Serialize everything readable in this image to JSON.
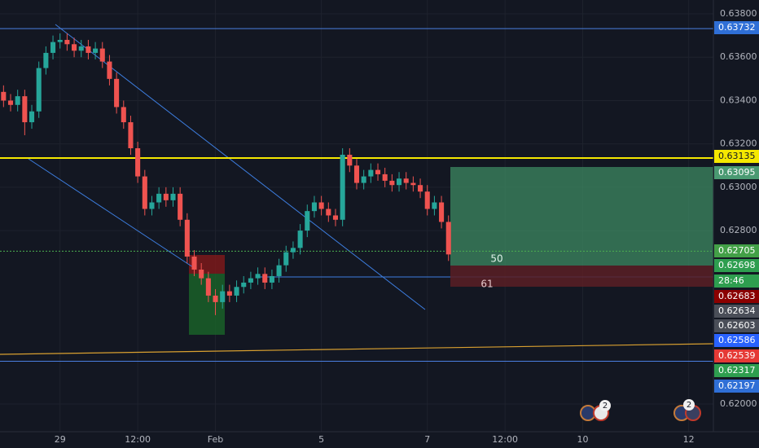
{
  "chart_data": {
    "type": "candlestick",
    "open": [
      0.6344,
      0.634,
      0.6338,
      0.6342,
      0.633,
      0.6335,
      0.6355,
      0.6362,
      0.6367,
      0.6368,
      0.6366,
      0.6363,
      0.6365,
      0.6362,
      0.6364,
      0.6358,
      0.635,
      0.6337,
      0.633,
      0.6318,
      0.6305,
      0.629,
      0.6293,
      0.6297,
      0.6294,
      0.6297,
      0.6285,
      0.6268,
      0.6262,
      0.6258,
      0.625,
      0.6247,
      0.6252,
      0.625,
      0.6254,
      0.6256,
      0.6258,
      0.626,
      0.6256,
      0.6259,
      0.6264,
      0.627,
      0.6272,
      0.628,
      0.6289,
      0.6293,
      0.629,
      0.6287,
      0.6285,
      0.6315,
      0.631,
      0.6302,
      0.6305,
      0.6308,
      0.6306,
      0.6303,
      0.6301,
      0.6304,
      0.6302,
      0.6301,
      0.6298,
      0.629,
      0.6293,
      0.6284
    ],
    "high": [
      0.6347,
      0.6343,
      0.6345,
      0.6345,
      0.6338,
      0.6358,
      0.6365,
      0.637,
      0.6371,
      0.6371,
      0.6369,
      0.6368,
      0.6368,
      0.6367,
      0.6367,
      0.6361,
      0.6353,
      0.634,
      0.6333,
      0.6321,
      0.6308,
      0.6296,
      0.63,
      0.63,
      0.63,
      0.63,
      0.6288,
      0.6271,
      0.6265,
      0.6261,
      0.6253,
      0.6255,
      0.6255,
      0.6257,
      0.6259,
      0.6261,
      0.6263,
      0.6263,
      0.6262,
      0.6267,
      0.6273,
      0.6275,
      0.6283,
      0.6292,
      0.6296,
      0.6296,
      0.6293,
      0.629,
      0.6318,
      0.6318,
      0.6313,
      0.6308,
      0.6311,
      0.6311,
      0.6309,
      0.6306,
      0.6307,
      0.6307,
      0.6305,
      0.6304,
      0.6301,
      0.6296,
      0.6296,
      0.6287
    ],
    "low": [
      0.6337,
      0.6335,
      0.6335,
      0.6324,
      0.6327,
      0.6332,
      0.6352,
      0.6359,
      0.6364,
      0.6363,
      0.636,
      0.636,
      0.6359,
      0.6359,
      0.6355,
      0.6347,
      0.6334,
      0.6327,
      0.6315,
      0.6302,
      0.6287,
      0.6287,
      0.629,
      0.6291,
      0.6291,
      0.6282,
      0.6265,
      0.6259,
      0.6255,
      0.6247,
      0.6241,
      0.6244,
      0.6247,
      0.6247,
      0.6251,
      0.6253,
      0.6255,
      0.6253,
      0.6253,
      0.6256,
      0.6261,
      0.6267,
      0.6269,
      0.6277,
      0.6286,
      0.6287,
      0.6284,
      0.6282,
      0.6282,
      0.6307,
      0.6299,
      0.6299,
      0.6302,
      0.6303,
      0.63,
      0.6298,
      0.6298,
      0.6299,
      0.6298,
      0.6295,
      0.6287,
      0.6287,
      0.6281,
      0.6266
    ],
    "close": [
      0.634,
      0.6338,
      0.6342,
      0.633,
      0.6335,
      0.6355,
      0.6362,
      0.6367,
      0.6368,
      0.6366,
      0.6363,
      0.6365,
      0.6362,
      0.6364,
      0.6358,
      0.635,
      0.6337,
      0.633,
      0.6318,
      0.6305,
      0.629,
      0.6293,
      0.6297,
      0.6294,
      0.6297,
      0.6285,
      0.6268,
      0.6262,
      0.6258,
      0.625,
      0.6247,
      0.6252,
      0.625,
      0.6254,
      0.6256,
      0.6258,
      0.626,
      0.6256,
      0.6259,
      0.6264,
      0.627,
      0.6272,
      0.628,
      0.6289,
      0.6293,
      0.629,
      0.6287,
      0.6285,
      0.6315,
      0.631,
      0.6302,
      0.6305,
      0.6308,
      0.6306,
      0.6303,
      0.6301,
      0.6304,
      0.6302,
      0.6301,
      0.6298,
      0.629,
      0.6293,
      0.6284,
      0.6269
    ],
    "up_color": "#26a69a",
    "down_color": "#ef5350",
    "xlim": [
      -0.5,
      100.5
    ],
    "xticks": [
      {
        "value": 8,
        "label": "29"
      },
      {
        "value": 19,
        "label": "12:00"
      },
      {
        "value": 30,
        "label": "Feb"
      },
      {
        "value": 45,
        "label": "5"
      },
      {
        "value": 60,
        "label": "7"
      },
      {
        "value": 71,
        "label": "12:00"
      },
      {
        "value": 82,
        "label": "10"
      },
      {
        "value": 97,
        "label": "12"
      }
    ],
    "ylim": [
      0.61872,
      0.63864
    ],
    "yticks": [
      {
        "value": 0.638,
        "label": "0.63800"
      },
      {
        "value": 0.636,
        "label": "0.63600"
      },
      {
        "value": 0.634,
        "label": "0.63400"
      },
      {
        "value": 0.632,
        "label": "0.63200"
      },
      {
        "value": 0.63,
        "label": "0.63000"
      },
      {
        "value": 0.628,
        "label": "0.62800"
      },
      {
        "value": 0.62,
        "label": "0.62000"
      }
    ],
    "grid": true,
    "levels": [
      {
        "price": 0.63732,
        "color": "#4a7fe0"
      },
      {
        "price": 0.63135,
        "color": "#f5e800"
      },
      {
        "price": 0.62705,
        "color": "#4caf50"
      },
      {
        "price": 0.62197,
        "color": "#4a7fe0"
      }
    ],
    "price_tags": [
      {
        "text": 0.63732,
        "color": "#2f6fd6"
      },
      {
        "text": 0.63135,
        "color": "#f5e800"
      },
      {
        "text": 0.63095,
        "color": "#4a9a72"
      },
      {
        "text": 0.62705,
        "color": "#43a047"
      },
      {
        "text": 0.62698,
        "color": "#2e9e4f"
      },
      {
        "text": "28:46",
        "color": "#2e9e4f"
      },
      {
        "text": 0.62683,
        "color": "#8b0000"
      },
      {
        "text": 0.62634,
        "color": "#4a4e58"
      },
      {
        "text": 0.62603,
        "color": "#4a4e58"
      },
      {
        "text": 0.62586,
        "color": "#2962ff"
      },
      {
        "text": 0.62539,
        "color": "#e53935"
      },
      {
        "text": 0.62317,
        "color": "#2e9e4f"
      },
      {
        "text": 0.62197,
        "color": "#2f6fd6"
      }
    ],
    "position_labels": [
      "50",
      "61"
    ],
    "event_badges": [
      "2",
      "2"
    ]
  }
}
